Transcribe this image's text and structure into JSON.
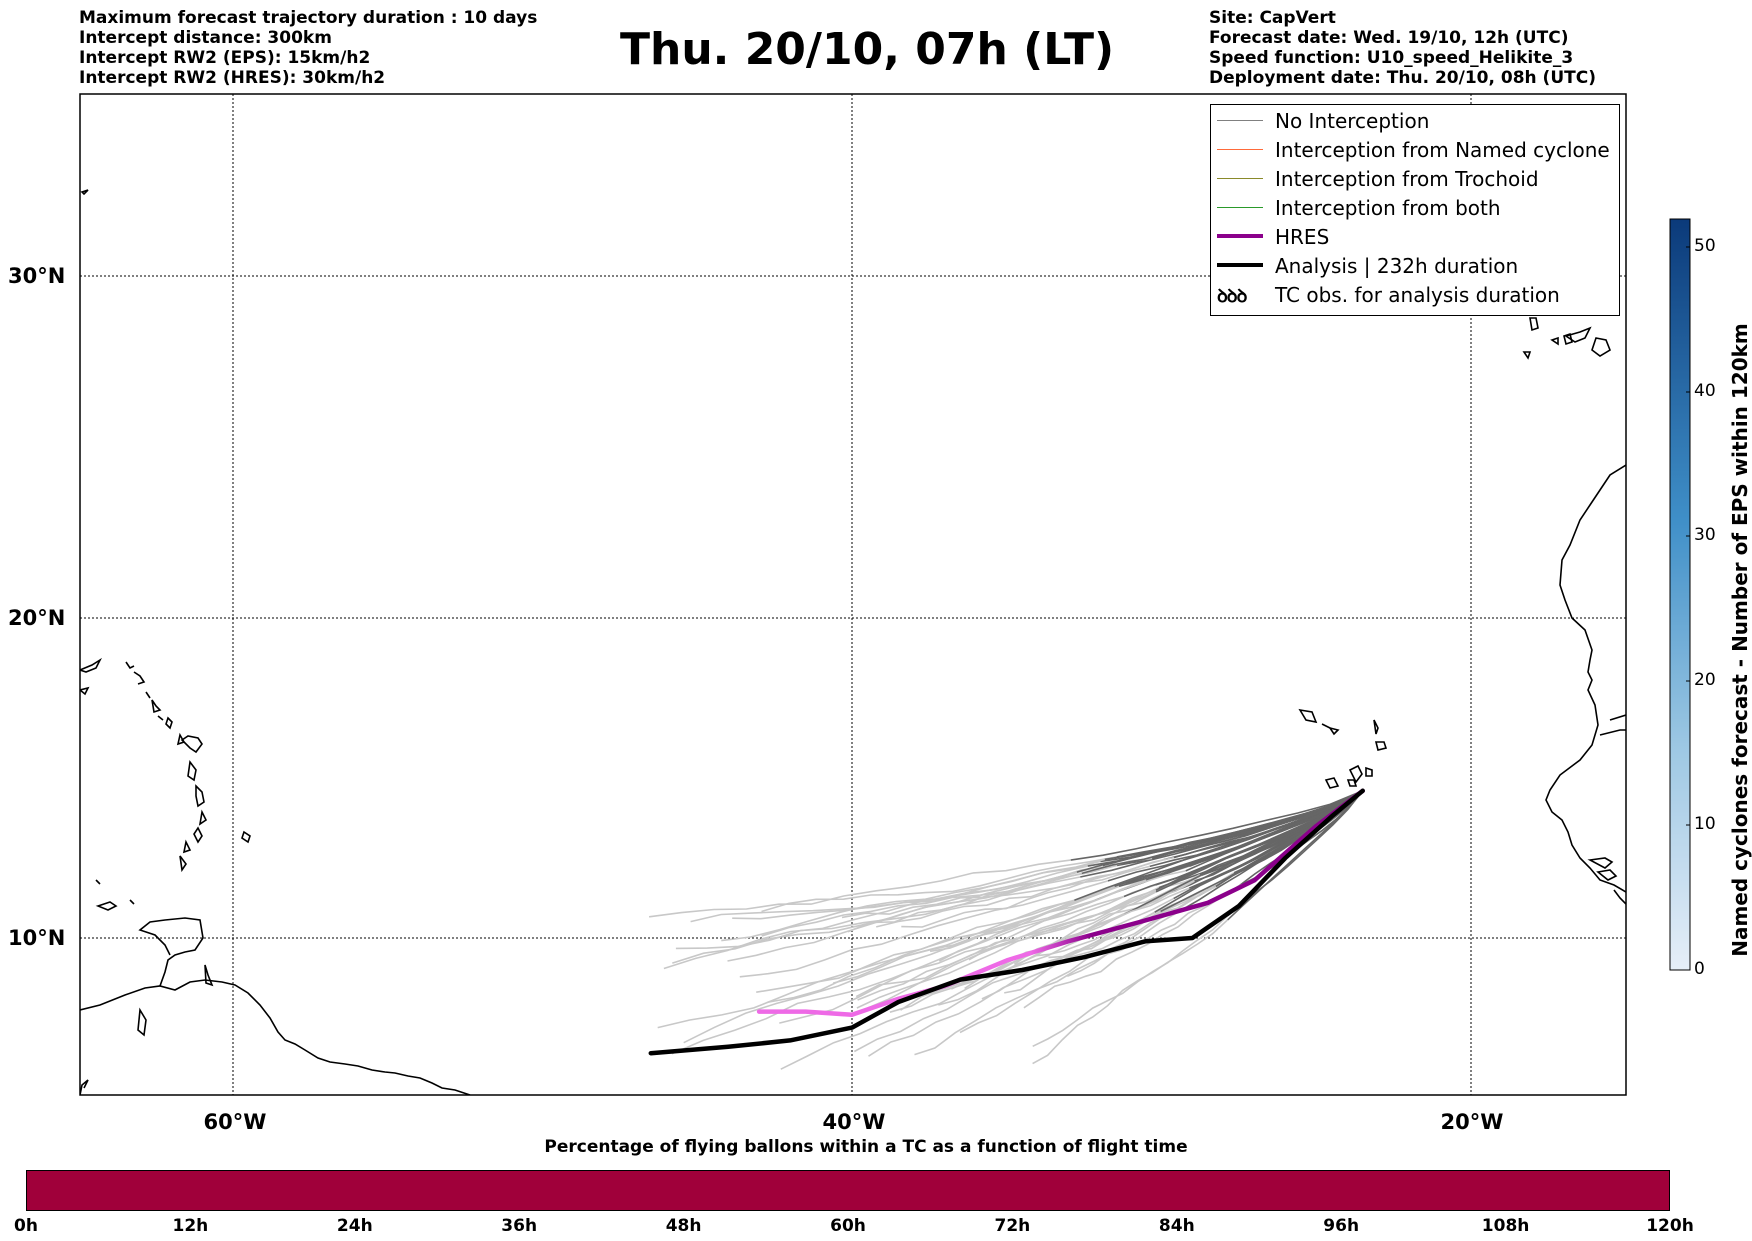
{
  "header_left": [
    "Maximum forecast trajectory duration : 10 days",
    "Intercept distance: 300km",
    "Intercept RW2 (EPS):  15km/h2",
    "Intercept RW2 (HRES): 30km/h2"
  ],
  "title": "Thu. 20/10, 07h (LT)",
  "header_right": [
    "Site: CapVert",
    "Forecast date: Wed. 19/10, 12h (UTC)",
    "Speed function: U10_speed_Helikite_3",
    "Deployment date: Thu. 20/10, 08h (UTC)"
  ],
  "map": {
    "lat_ticks": [
      "30°N",
      "20°N",
      "10°N"
    ],
    "lon_ticks": [
      "60°W",
      "40°W",
      "20°W"
    ],
    "grid": "dotted",
    "frame_range": {
      "lon": [
        -65,
        -15
      ],
      "lat": [
        5.2,
        34.5
      ]
    }
  },
  "legend": {
    "items": [
      {
        "label": "No Interception",
        "color": "#808080",
        "width": "thin"
      },
      {
        "label": "Interception from Named cyclone",
        "color": "#ff6a3a",
        "width": "thin"
      },
      {
        "label": "Interception from Trochoid",
        "color": "#8a8a2a",
        "width": "thin"
      },
      {
        "label": "Interception from both",
        "color": "#2a9a2a",
        "width": "thin"
      },
      {
        "label": "HRES",
        "color": "#8b008b",
        "width": "thick"
      },
      {
        "label": "Analysis | 232h duration",
        "color": "#000000",
        "width": "thick"
      },
      {
        "label": "TC obs. for analysis duration",
        "symbol": "tc-icon",
        "glyph": "ꝺꝺꝺ"
      }
    ]
  },
  "trajectories": {
    "origin": {
      "lon": -23.5,
      "lat": 14.6
    },
    "hres": {
      "color_start": "#8b008b",
      "color_end": "#ee6ae6",
      "points": [
        [
          -23.5,
          14.6
        ],
        [
          -25.0,
          13.5
        ],
        [
          -27.0,
          11.8
        ],
        [
          -28.5,
          11.1
        ],
        [
          -30.7,
          10.5
        ],
        [
          -33.0,
          9.9
        ],
        [
          -35.0,
          9.3
        ],
        [
          -37.0,
          8.5
        ],
        [
          -38.5,
          8.1
        ],
        [
          -40.0,
          7.6
        ],
        [
          -41.5,
          7.7
        ],
        [
          -43.0,
          7.7
        ]
      ]
    },
    "analysis": {
      "color": "#000000",
      "points": [
        [
          -23.5,
          14.6
        ],
        [
          -24.5,
          13.8
        ],
        [
          -26.0,
          12.5
        ],
        [
          -27.5,
          11.0
        ],
        [
          -29.0,
          10.0
        ],
        [
          -30.5,
          9.9
        ],
        [
          -32.5,
          9.4
        ],
        [
          -34.5,
          9.0
        ],
        [
          -36.5,
          8.7
        ],
        [
          -38.5,
          8.0
        ],
        [
          -40.0,
          7.2
        ],
        [
          -42.0,
          6.8
        ],
        [
          -44.0,
          6.6
        ],
        [
          -46.5,
          6.4
        ]
      ]
    }
  },
  "colorbar": {
    "label": "Named cyclones forecast - Number of EPS within 120km",
    "ticks": [
      "0",
      "10",
      "20",
      "30",
      "40",
      "50"
    ],
    "range": [
      0,
      52
    ],
    "color_low": "#e6eef8",
    "color_high": "#0b3a7a"
  },
  "timebar": {
    "title": "Percentage of flying ballons within a TC as a function of flight time",
    "ticks": [
      "0h",
      "12h",
      "24h",
      "36h",
      "48h",
      "60h",
      "72h",
      "84h",
      "96h",
      "108h",
      "120h"
    ],
    "color": "#a0003a"
  }
}
